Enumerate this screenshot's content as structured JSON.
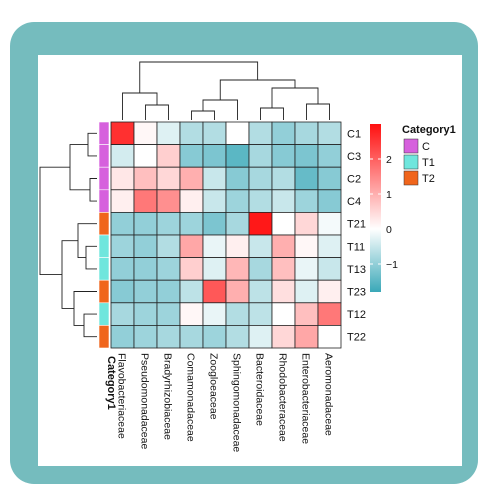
{
  "chart_data": {
    "type": "heatmap",
    "title": "",
    "xlabel": "",
    "ylabel": "",
    "rows": [
      "C1",
      "C3",
      "C2",
      "C4",
      "T21",
      "T11",
      "T13",
      "T23",
      "T12",
      "T22"
    ],
    "columns": [
      "Flavobacteriaceae",
      "Pseudomonadaceae",
      "Bradyrhizobiaceae",
      "Comamonadaceae",
      "Zoogloeaceae",
      "Sphingomonadaceae",
      "Bacteroidaceae",
      "Rhodobacteraceae",
      "Enterobacteriaceae",
      "Aeromonadaceae"
    ],
    "values": [
      [
        2.6,
        0.1,
        -0.3,
        -0.7,
        -0.7,
        0.0,
        -0.7,
        -1.0,
        -0.8,
        -0.7
      ],
      [
        -0.4,
        0.0,
        0.6,
        -1.1,
        -1.2,
        -1.5,
        -0.8,
        -1.1,
        -1.2,
        -1.0
      ],
      [
        0.3,
        0.8,
        0.5,
        1.0,
        -0.5,
        -1.1,
        -0.8,
        -0.7,
        -1.4,
        -1.1
      ],
      [
        0.2,
        1.7,
        1.4,
        0.2,
        -0.5,
        -0.9,
        -0.7,
        -0.5,
        -0.9,
        -1.1
      ],
      [
        -1.0,
        -1.0,
        -0.9,
        -0.9,
        -1.2,
        -0.8,
        2.9,
        0.0,
        0.5,
        -0.1
      ],
      [
        -0.9,
        -1.0,
        -0.7,
        1.1,
        -0.2,
        0.2,
        -0.5,
        1.0,
        0.1,
        -0.3
      ],
      [
        -1.0,
        -1.0,
        -0.9,
        0.6,
        -0.3,
        0.9,
        -0.8,
        0.8,
        -0.2,
        -0.5
      ],
      [
        -1.1,
        -1.0,
        -1.0,
        -0.6,
        2.1,
        1.0,
        -0.6,
        0.4,
        -0.3,
        0.2
      ],
      [
        -0.8,
        -0.9,
        -0.9,
        0.1,
        -0.2,
        -0.7,
        -0.6,
        0.0,
        0.8,
        1.7
      ],
      [
        -1.0,
        -0.9,
        -0.8,
        -0.8,
        -0.9,
        -0.7,
        -0.3,
        0.5,
        1.1,
        0.0
      ]
    ],
    "row_category": [
      "C",
      "C",
      "C",
      "C",
      "T2",
      "T1",
      "T1",
      "T2",
      "T1",
      "T2"
    ],
    "annotation_label": "Category1",
    "legend": {
      "title": "Category1",
      "items": [
        {
          "label": "C",
          "color": "#d660dd"
        },
        {
          "label": "T1",
          "color": "#6fe6dd"
        },
        {
          "label": "T2",
          "color": "#f0651c"
        }
      ]
    },
    "colorbar": {
      "ticks": [
        2,
        1,
        0,
        -1
      ],
      "tick_labels": [
        "2",
        "1",
        "0",
        "−1"
      ],
      "range": [
        -1.8,
        3.0
      ],
      "low_color": "#3aa8b8",
      "mid_color": "#ffffff",
      "high_color": "#ff1010"
    },
    "grid": true
  }
}
